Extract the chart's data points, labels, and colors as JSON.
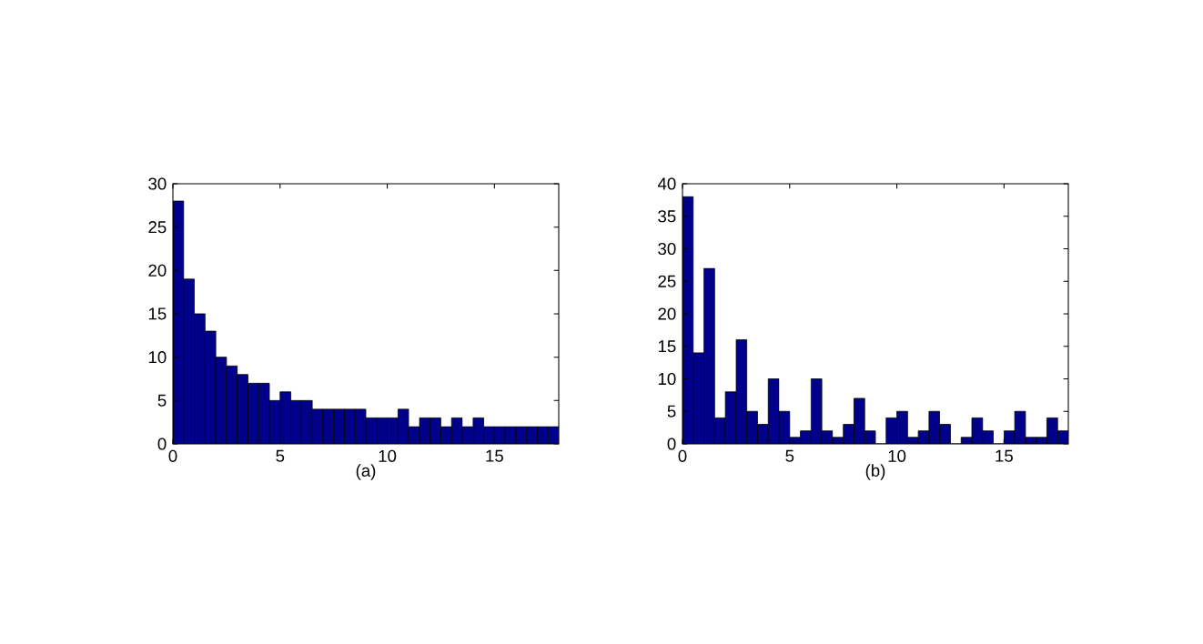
{
  "chart_data": [
    {
      "type": "histogram",
      "xlabel": "(a)",
      "bins": [
        0,
        0.5,
        1,
        1.5,
        2,
        2.5,
        3,
        3.5,
        4,
        4.5,
        5,
        5.5,
        6,
        6.5,
        7,
        7.5,
        8,
        8.5,
        9,
        9.5,
        10,
        10.5,
        11,
        11.5,
        12,
        12.5,
        13,
        13.5,
        14,
        14.5,
        15,
        15.5,
        16,
        16.5,
        17,
        17.5,
        18
      ],
      "values": [
        28,
        19,
        15,
        13,
        10,
        9,
        8,
        7,
        7,
        5,
        6,
        5,
        5,
        4,
        4,
        4,
        4,
        4,
        3,
        3,
        3,
        4,
        2,
        3,
        3,
        2,
        3,
        2,
        3,
        2,
        2,
        2,
        2,
        2,
        2,
        2
      ],
      "color": "#00008b",
      "xlim": [
        0,
        18
      ],
      "ylim": [
        0,
        30
      ],
      "xticks": [
        0,
        5,
        10,
        15
      ],
      "yticks": [
        0,
        5,
        10,
        15,
        20,
        25,
        30
      ]
    },
    {
      "type": "histogram",
      "xlabel": "(b)",
      "bins": [
        0,
        0.5,
        1,
        1.5,
        2,
        2.5,
        3,
        3.5,
        4,
        4.5,
        5,
        5.5,
        6,
        6.5,
        7,
        7.5,
        8,
        8.5,
        9,
        9.5,
        10,
        10.5,
        11,
        11.5,
        12,
        12.5,
        13,
        13.5,
        14,
        14.5,
        15,
        15.5,
        16,
        16.5,
        17,
        17.5,
        18
      ],
      "values": [
        38,
        14,
        27,
        4,
        8,
        16,
        5,
        3,
        10,
        5,
        1,
        2,
        10,
        2,
        1,
        3,
        7,
        2,
        0,
        4,
        5,
        1,
        2,
        5,
        3,
        0,
        1,
        4,
        2,
        0,
        2,
        5,
        1,
        1,
        4,
        2
      ],
      "color": "#00008b",
      "xlim": [
        0,
        18
      ],
      "ylim": [
        0,
        40
      ],
      "xticks": [
        0,
        5,
        10,
        15
      ],
      "yticks": [
        0,
        5,
        10,
        15,
        20,
        25,
        30,
        35,
        40
      ]
    }
  ]
}
